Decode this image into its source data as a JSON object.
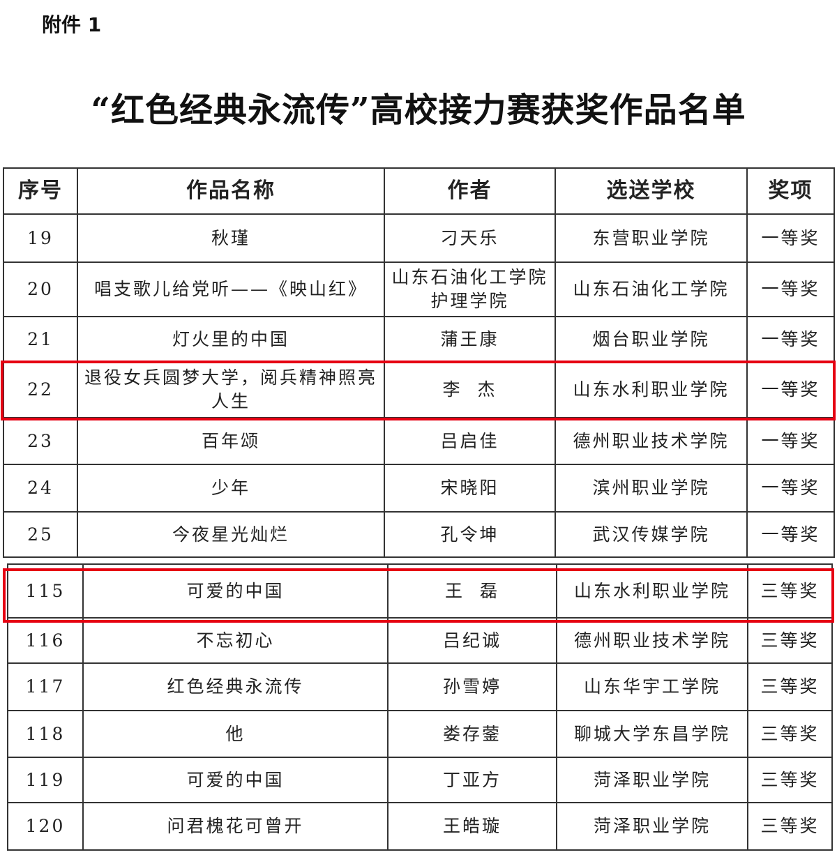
{
  "attachment_label": "附件 1",
  "title": "“红色经典永流传”高校接力赛获奖作品名单",
  "headers": [
    "序号",
    "作品名称",
    "作者",
    "选送学校",
    "奖项"
  ],
  "rows_part1": [
    [
      "19",
      "秋瑾",
      "刁天乐",
      "东营职业学院",
      "一等奖"
    ],
    [
      "20",
      "唱支歌儿给党听——《映山红》",
      "山东石油化工学院护理学院",
      "山东石油化工学院",
      "一等奖"
    ],
    [
      "21",
      "灯火里的中国",
      "蒲王康",
      "烟台职业学院",
      "一等奖"
    ],
    [
      "22",
      "退役女兵圆梦大学，阅兵精神照亮人生",
      "李  杰",
      "山东水利职业学院",
      "一等奖"
    ],
    [
      "23",
      "百年颂",
      "吕启佳",
      "德州职业技术学院",
      "一等奖"
    ],
    [
      "24",
      "少年",
      "宋晓阳",
      "滨州职业学院",
      "一等奖"
    ],
    [
      "25",
      "今夜星光灿烂",
      "孔令坤",
      "武汉传媒学院",
      "一等奖"
    ]
  ],
  "rows_part2": [
    [
      "115",
      "可爱的中国",
      "王  磊",
      "山东水利职业学院",
      "三等奖"
    ],
    [
      "116",
      "不忘初心",
      "吕纪诚",
      "德州职业技术学院",
      "三等奖"
    ],
    [
      "117",
      "红色经典永流传",
      "孙雪婷",
      "山东华宇工学院",
      "三等奖"
    ],
    [
      "118",
      "他",
      "娄存蓥",
      "聊城大学东昌学院",
      "三等奖"
    ],
    [
      "119",
      "可爱的中国",
      "丁亚方",
      "菏泽职业学院",
      "三等奖"
    ],
    [
      "120",
      "问君槐花可曾开",
      "王皓璇",
      "菏泽职业学院",
      "三等奖"
    ]
  ],
  "highlight_color": "#e60012"
}
